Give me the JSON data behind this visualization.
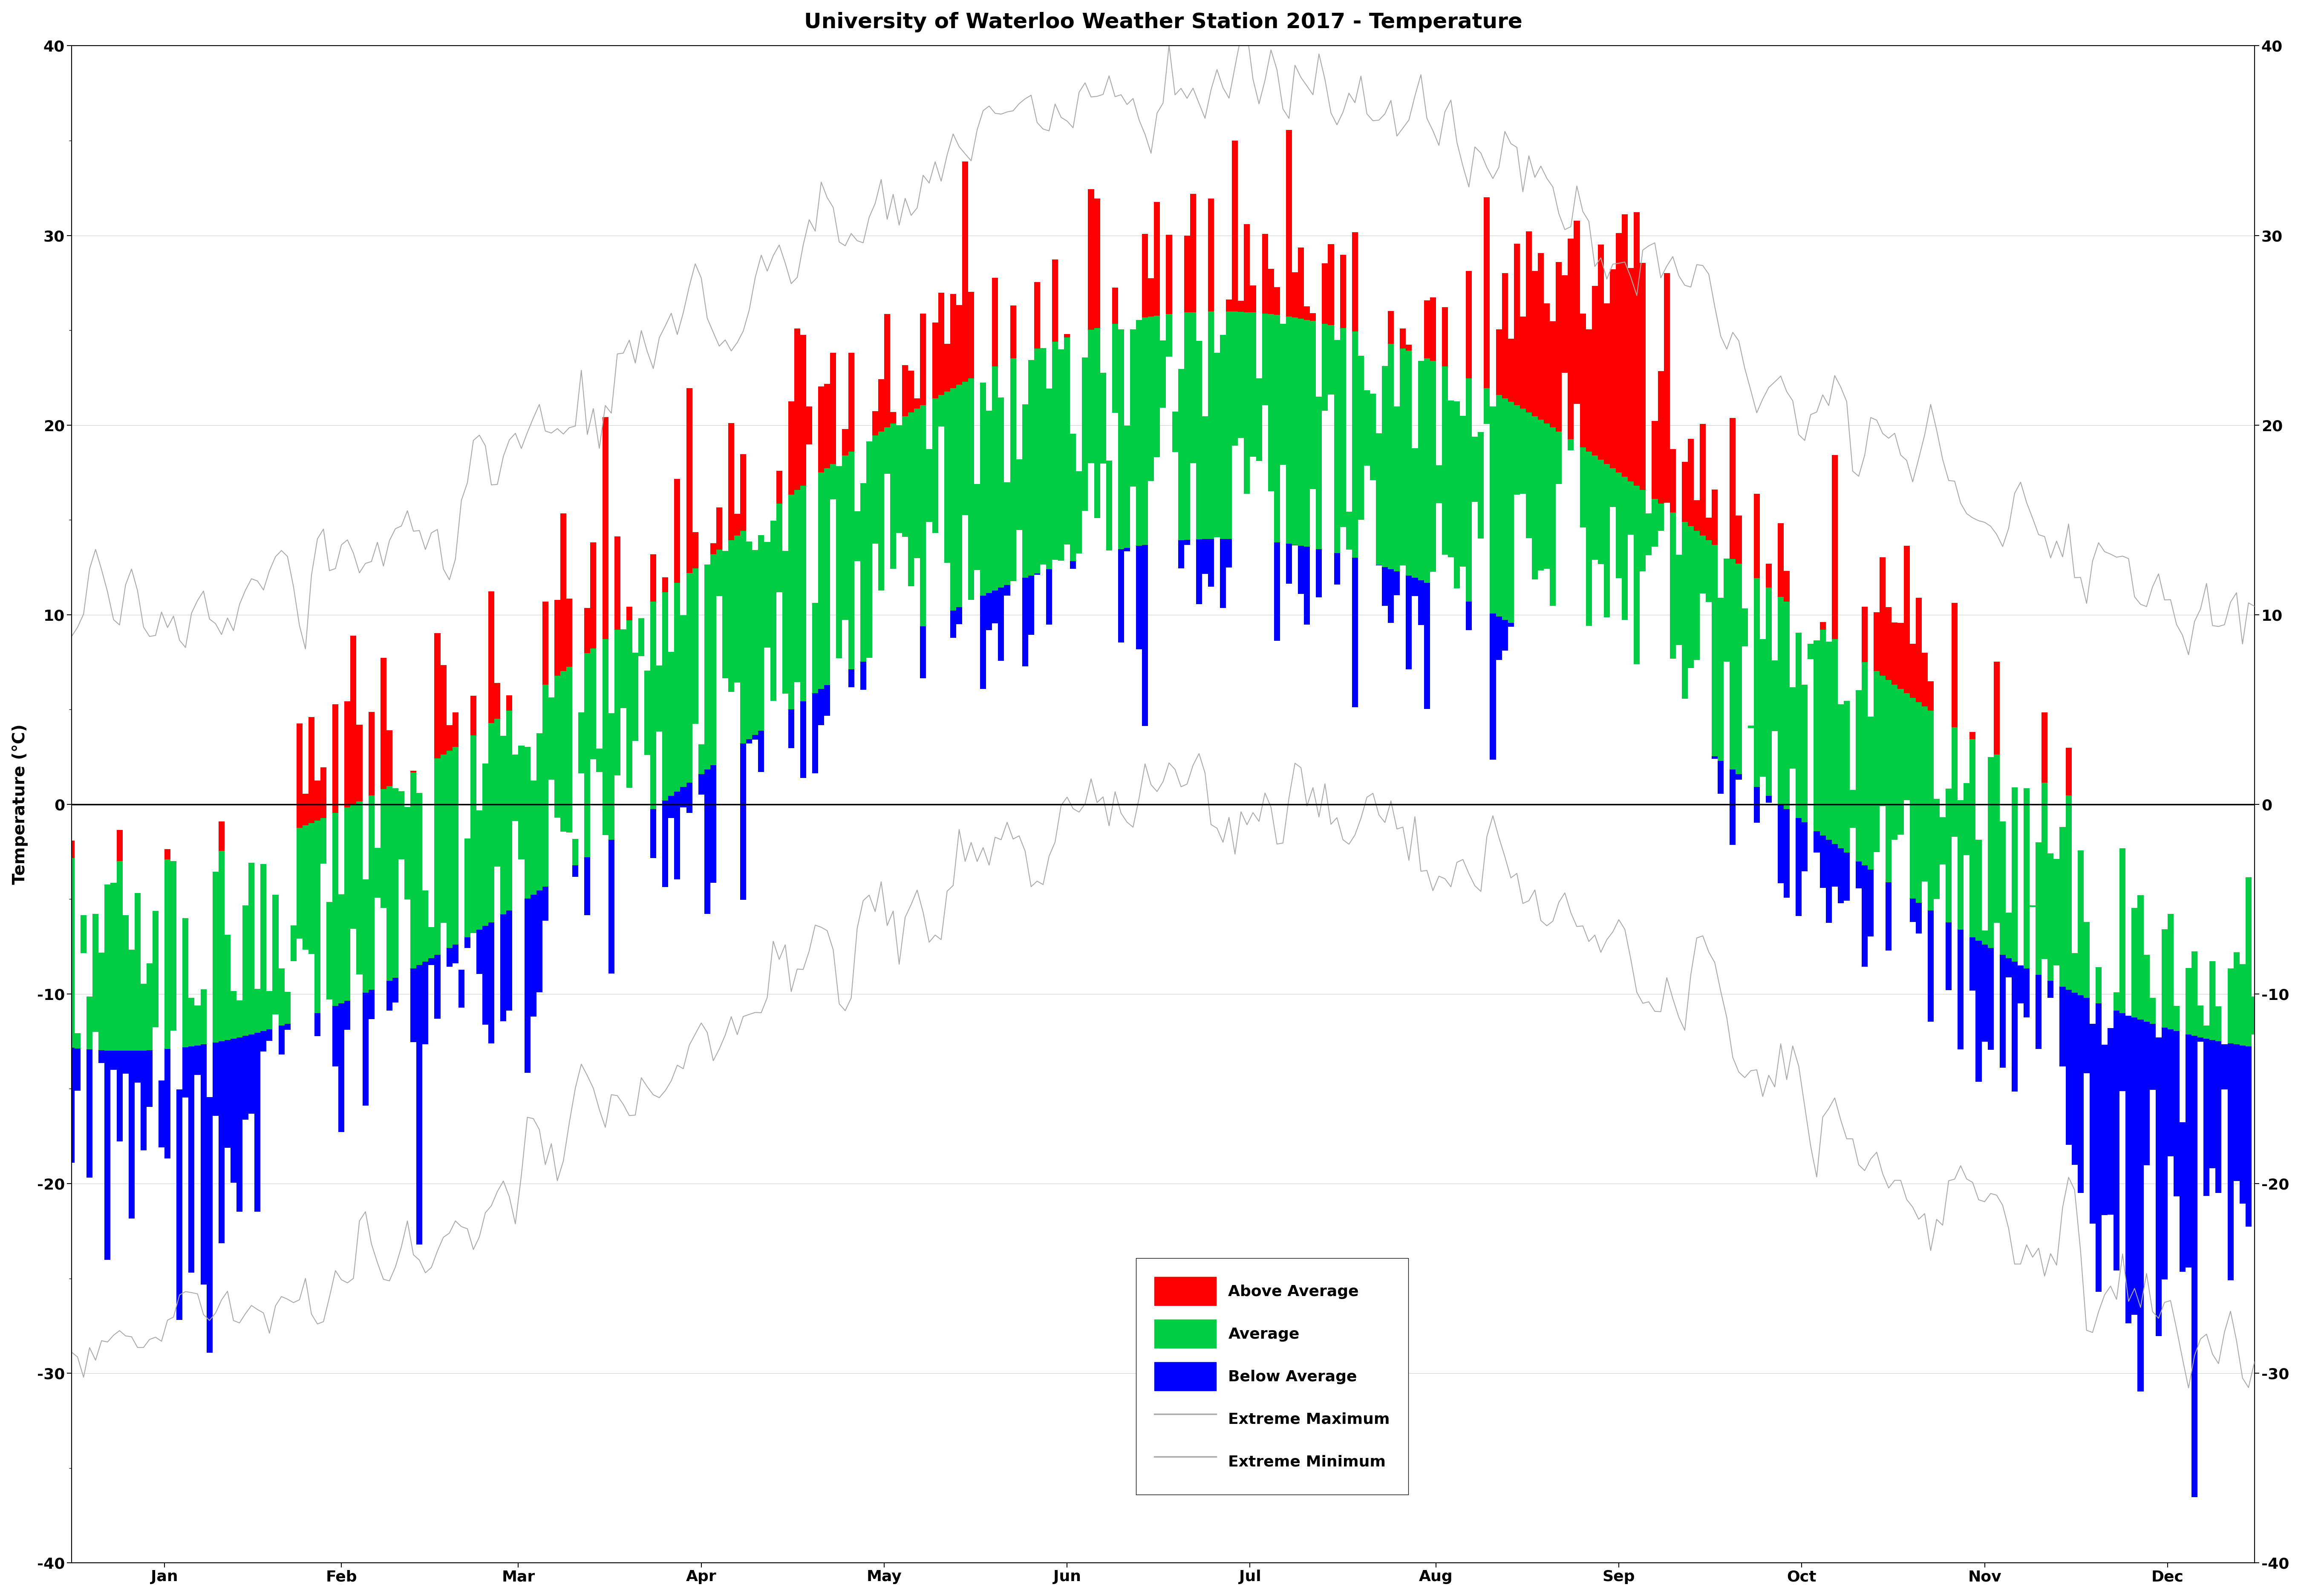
{
  "title": "University of Waterloo Weather Station 2017 - Temperature",
  "ylabel": "Temperature (°C)",
  "ylim": [
    -40,
    40
  ],
  "yticks": [
    -40,
    -30,
    -20,
    -10,
    0,
    10,
    20,
    30,
    40
  ],
  "month_labels": [
    "Jan",
    "Feb",
    "Mar",
    "Apr",
    "May",
    "Jun",
    "Jul",
    "Aug",
    "Sep",
    "Oct",
    "Nov",
    "Dec"
  ],
  "legend_labels": [
    "Above Average",
    "Average",
    "Below Average",
    "Extreme Maximum",
    "Extreme Minimum"
  ],
  "colors": {
    "above_avg": "#FF0000",
    "average": "#00CC44",
    "below_avg": "#0000FF",
    "extreme": "#AAAAAA",
    "zero_line": "#000000"
  },
  "background": "#FFFFFF",
  "title_fontsize": 36,
  "axis_fontsize": 28,
  "tick_fontsize": 26,
  "legend_fontsize": 26
}
